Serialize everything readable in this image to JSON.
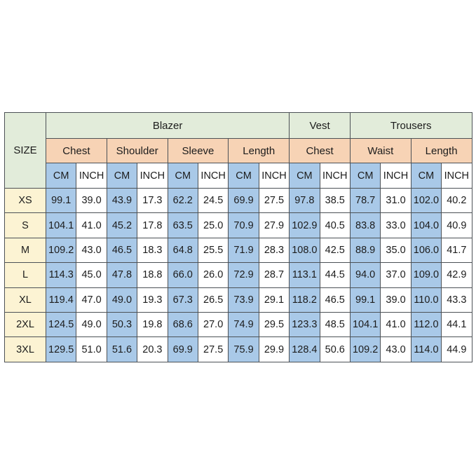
{
  "colors": {
    "green": "#e2ecda",
    "peach": "#f7d3b5",
    "blue": "#a9c9e8",
    "cream": "#fcf3d3"
  },
  "chart_data": {
    "type": "table",
    "corner_label": "SIZE",
    "column_groups": [
      {
        "label": "Blazer",
        "measures": [
          "Chest",
          "Shoulder",
          "Sleeve",
          "Length"
        ]
      },
      {
        "label": "Vest",
        "measures": [
          "Chest"
        ]
      },
      {
        "label": "Trousers",
        "measures": [
          "Waist",
          "Length"
        ]
      }
    ],
    "unit_labels": [
      "CM",
      "INCH"
    ],
    "rows": [
      {
        "size": "XS",
        "values": [
          "99.1",
          "39.0",
          "43.9",
          "17.3",
          "62.2",
          "24.5",
          "69.9",
          "27.5",
          "97.8",
          "38.5",
          "78.7",
          "31.0",
          "102.0",
          "40.2"
        ]
      },
      {
        "size": "S",
        "values": [
          "104.1",
          "41.0",
          "45.2",
          "17.8",
          "63.5",
          "25.0",
          "70.9",
          "27.9",
          "102.9",
          "40.5",
          "83.8",
          "33.0",
          "104.0",
          "40.9"
        ]
      },
      {
        "size": "M",
        "values": [
          "109.2",
          "43.0",
          "46.5",
          "18.3",
          "64.8",
          "25.5",
          "71.9",
          "28.3",
          "108.0",
          "42.5",
          "88.9",
          "35.0",
          "106.0",
          "41.7"
        ]
      },
      {
        "size": "L",
        "values": [
          "114.3",
          "45.0",
          "47.8",
          "18.8",
          "66.0",
          "26.0",
          "72.9",
          "28.7",
          "113.1",
          "44.5",
          "94.0",
          "37.0",
          "109.0",
          "42.9"
        ]
      },
      {
        "size": "XL",
        "values": [
          "119.4",
          "47.0",
          "49.0",
          "19.3",
          "67.3",
          "26.5",
          "73.9",
          "29.1",
          "118.2",
          "46.5",
          "99.1",
          "39.0",
          "110.0",
          "43.3"
        ]
      },
      {
        "size": "2XL",
        "values": [
          "124.5",
          "49.0",
          "50.3",
          "19.8",
          "68.6",
          "27.0",
          "74.9",
          "29.5",
          "123.3",
          "48.5",
          "104.1",
          "41.0",
          "112.0",
          "44.1"
        ]
      },
      {
        "size": "3XL",
        "values": [
          "129.5",
          "51.0",
          "51.6",
          "20.3",
          "69.9",
          "27.5",
          "75.9",
          "29.9",
          "128.4",
          "50.6",
          "109.2",
          "43.0",
          "114.0",
          "44.9"
        ]
      }
    ]
  }
}
